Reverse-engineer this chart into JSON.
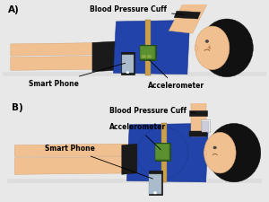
{
  "bg_color": "#e8e8e8",
  "panel_bg": "#ffffff",
  "border_color": "#888888",
  "skin_color": "#f0c090",
  "skin_dark": "#d4a070",
  "hair_color": "#111111",
  "shirt_color": "#2244aa",
  "black_color": "#1a1a1a",
  "green_color": "#3a6820",
  "green_light": "#5a9030",
  "phone_color": "#222222",
  "tan_color": "#c8a050",
  "white": "#ffffff",
  "gray_screen": "#aabbcc",
  "panel_A_label": "A)",
  "panel_B_label": "B)",
  "label_bp_cuff": "Blood Pressure Cuff",
  "label_smartphone": "Smart Phone",
  "label_accel": "Accelerometer",
  "text_color": "#000000",
  "label_fs": 5.5
}
